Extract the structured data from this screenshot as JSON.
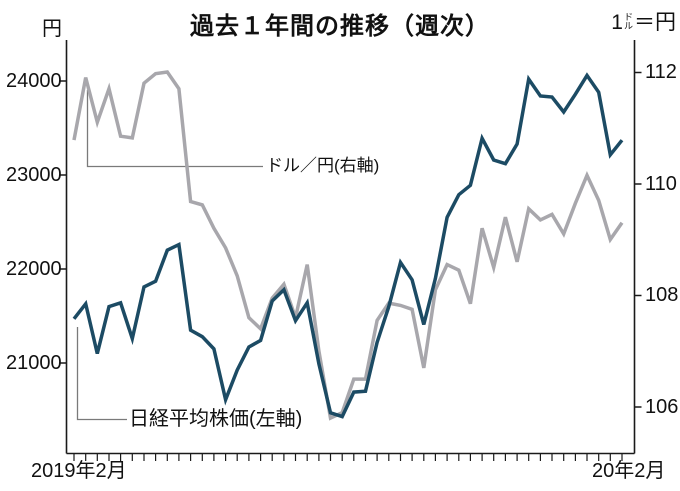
{
  "header": {
    "left_unit": "円",
    "title": "過去１年間の推移（週次）",
    "right_unit_prefix": "1",
    "right_unit_small_top": "ド",
    "right_unit_small_bottom": "ル",
    "right_unit_suffix": "＝円"
  },
  "annotations": {
    "usdjpy_label": "ドル／円(右軸)",
    "nikkei_label": "日経平均株価(左軸)"
  },
  "x_axis": {
    "start_label": "2019年2月",
    "end_label": "20年2月"
  },
  "chart_data": {
    "type": "line",
    "title": "過去１年間の推移（週次）",
    "x_unit": "week",
    "x_range_labels": [
      "2019年2月",
      "20年2月"
    ],
    "grid": false,
    "left_axis": {
      "unit": "円",
      "ticks": [
        24000,
        23000,
        22000,
        21000
      ],
      "ylim": [
        20050,
        24430
      ]
    },
    "right_axis": {
      "unit": "1ドル＝円",
      "ticks": [
        112,
        110,
        108,
        106
      ],
      "ylim": [
        105.2,
        112.6
      ]
    },
    "series": [
      {
        "name": "日経平均株価(左軸)",
        "axis": "left",
        "color": "#1c4b64",
        "values": [
          21470,
          21630,
          21100,
          21600,
          21640,
          21260,
          21810,
          21870,
          22200,
          22260,
          21350,
          21280,
          21150,
          20610,
          20925,
          21170,
          21240,
          21660,
          21780,
          21450,
          21640,
          20990,
          20470,
          20430,
          20690,
          20700,
          21220,
          21600,
          22070,
          21885,
          21410,
          21900,
          22550,
          22790,
          22890,
          23390,
          23160,
          23120,
          23330,
          24020,
          23840,
          23830,
          23670,
          23860,
          24060,
          23880,
          23215,
          23370
        ]
      },
      {
        "name": "ドル／円(右軸)",
        "axis": "right",
        "color": "#a8a7ac",
        "values": [
          110.78,
          111.9,
          111.1,
          111.7,
          110.85,
          110.82,
          111.8,
          111.97,
          112.0,
          111.7,
          109.68,
          109.62,
          109.2,
          108.85,
          108.35,
          107.6,
          107.4,
          107.95,
          108.2,
          107.6,
          108.55,
          107.0,
          105.8,
          105.9,
          106.5,
          106.5,
          107.55,
          107.86,
          107.82,
          107.75,
          106.7,
          108.1,
          108.55,
          108.45,
          107.85,
          109.2,
          108.5,
          109.4,
          108.6,
          109.55,
          109.35,
          109.45,
          109.1,
          109.65,
          110.15,
          109.7,
          109.0,
          109.3
        ]
      }
    ]
  }
}
